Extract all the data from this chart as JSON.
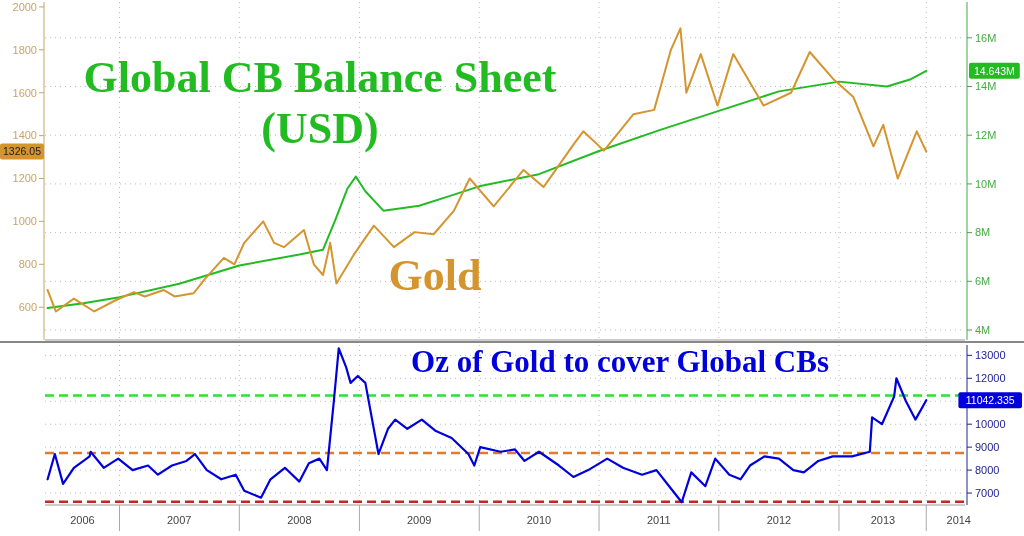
{
  "chart_data": [
    {
      "type": "line",
      "xlim": [
        "2006-05-19",
        "2014-01-20"
      ],
      "xticks": [
        {
          "value": "2007-01-01",
          "label": null
        },
        {
          "value": "2008-01-01",
          "label": null
        },
        {
          "value": "2009-01-01",
          "label": null
        },
        {
          "value": "2010-01-01",
          "label": null
        },
        {
          "value": "2011-01-01",
          "label": null
        },
        {
          "value": "2012-01-01",
          "label": null
        },
        {
          "value": "2013-01-01",
          "label": null
        },
        {
          "value": "2013-09-24",
          "label": null
        }
      ],
      "ylim": [
        447,
        2023
      ],
      "yticks": [
        600,
        800,
        1000,
        1200,
        1400,
        1600,
        1800,
        2000
      ],
      "y2lim": [
        3.59,
        17.47
      ],
      "y2ticks": [
        {
          "value": 4,
          "label": "4M"
        },
        {
          "value": 6,
          "label": "6M"
        },
        {
          "value": 8,
          "label": "8M"
        },
        {
          "value": 10,
          "label": "10M"
        },
        {
          "value": 12,
          "label": "12M"
        },
        {
          "value": 14,
          "label": "14M"
        },
        {
          "value": 16,
          "label": "16M"
        }
      ],
      "grid": true,
      "tick_labels": "y",
      "annotations": [
        "14.643M",
        "1326.05"
      ],
      "series": [
        {
          "name": "Global CB Balance Sheet (USD)",
          "color": "#22bb22",
          "axis": "y2",
          "x": [
            "2006-05-27",
            "2006-09-13",
            "2007-01-01",
            "2007-07-02",
            "2008-01-01",
            "2008-07-02",
            "2008-09-12",
            "2008-10-19",
            "2008-11-25",
            "2008-12-21",
            "2009-01-19",
            "2009-03-15",
            "2009-07-02",
            "2009-10-02",
            "2010-01-01",
            "2010-07-02",
            "2011-01-01",
            "2011-07-02",
            "2012-01-01",
            "2012-07-02",
            "2013-01-01",
            "2013-05-27",
            "2013-08-08",
            "2013-09-24"
          ],
          "values": [
            4.9,
            5.1,
            5.35,
            5.9,
            6.65,
            7.1,
            7.3,
            8.5,
            9.8,
            10.3,
            9.7,
            8.9,
            9.1,
            9.5,
            9.9,
            10.4,
            11.35,
            12.2,
            13.0,
            13.8,
            14.2,
            14.0,
            14.3,
            14.643
          ]
        },
        {
          "name": "Gold",
          "color": "#d4952f",
          "x": [
            "2006-05-27",
            "2006-06-21",
            "2006-08-15",
            "2006-10-16",
            "2006-12-17",
            "2007-02-14",
            "2007-03-19",
            "2007-05-16",
            "2007-06-18",
            "2007-08-15",
            "2007-09-17",
            "2007-11-15",
            "2007-12-17",
            "2008-01-16",
            "2008-03-14",
            "2008-04-16",
            "2008-05-16",
            "2008-07-16",
            "2008-08-15",
            "2008-09-12",
            "2008-10-04",
            "2008-10-23",
            "2008-12-17",
            "2009-02-14",
            "2009-04-16",
            "2009-06-18",
            "2009-08-15",
            "2009-10-16",
            "2009-12-03",
            "2010-02-14",
            "2010-05-16",
            "2010-07-16",
            "2010-10-16",
            "2010-11-14",
            "2011-01-16",
            "2011-04-16",
            "2011-06-18",
            "2011-08-08",
            "2011-09-06",
            "2011-09-24",
            "2011-11-07",
            "2011-12-28",
            "2012-02-14",
            "2012-05-16",
            "2012-08-08",
            "2012-10-04",
            "2012-12-17",
            "2013-02-14",
            "2013-04-16",
            "2013-05-16",
            "2013-06-29",
            "2013-08-26",
            "2013-09-24"
          ],
          "values": [
            680,
            580,
            640,
            580,
            630,
            670,
            650,
            680,
            650,
            665,
            730,
            830,
            800,
            900,
            1000,
            900,
            880,
            960,
            800,
            750,
            900,
            710,
            850,
            980,
            880,
            950,
            940,
            1050,
            1200,
            1070,
            1240,
            1160,
            1360,
            1420,
            1330,
            1500,
            1520,
            1800,
            1900,
            1600,
            1780,
            1540,
            1780,
            1540,
            1600,
            1790,
            1660,
            1580,
            1350,
            1450,
            1200,
            1420,
            1326.05
          ]
        }
      ]
    },
    {
      "type": "line",
      "title": "Oz of Gold to cover Global CBs",
      "xlim": [
        "2006-05-19",
        "2014-01-20"
      ],
      "xticks": [
        {
          "value": "2006-09-10",
          "label": "2006"
        },
        {
          "value": "2007-01-01",
          "label": null
        },
        {
          "value": "2007-07-02",
          "label": "2007"
        },
        {
          "value": "2008-01-01",
          "label": null
        },
        {
          "value": "2008-07-02",
          "label": "2008"
        },
        {
          "value": "2009-01-01",
          "label": null
        },
        {
          "value": "2009-07-02",
          "label": "2009"
        },
        {
          "value": "2010-01-01",
          "label": null
        },
        {
          "value": "2010-07-02",
          "label": "2010"
        },
        {
          "value": "2011-01-01",
          "label": null
        },
        {
          "value": "2011-07-02",
          "label": "2011"
        },
        {
          "value": "2012-01-01",
          "label": null
        },
        {
          "value": "2012-07-02",
          "label": "2012"
        },
        {
          "value": "2013-01-01",
          "label": null
        },
        {
          "value": "2013-05-15",
          "label": "2013"
        },
        {
          "value": "2013-09-24",
          "label": null
        },
        {
          "value": "2014-01-01",
          "label": "2014"
        }
      ],
      "y2lim": [
        6480,
        13450
      ],
      "y2ticks": [
        7000,
        8000,
        9000,
        10000,
        {
          "value": 11000,
          "label": null
        },
        12000,
        13000
      ],
      "grid": true,
      "annotations": [
        "11042.335"
      ],
      "ref_lines": [
        {
          "axis": "y2",
          "value": 11250,
          "color": "#33dd33",
          "line_style": "dashed"
        },
        {
          "axis": "y2",
          "value": 8750,
          "color": "#e07b2a",
          "line_style": "dashed"
        },
        {
          "axis": "y2",
          "value": 6620,
          "color": "#cc2222",
          "line_style": "dashed"
        }
      ],
      "series": [
        {
          "color": "#0000dd",
          "axis": "y2",
          "x": [
            "2006-05-27",
            "2006-06-18",
            "2006-07-13",
            "2006-08-15",
            "2006-10-02",
            "2006-10-05",
            "2006-11-14",
            "2006-12-28",
            "2007-02-10",
            "2007-03-29",
            "2007-04-28",
            "2007-06-10",
            "2007-07-24",
            "2007-08-19",
            "2007-09-24",
            "2007-11-07",
            "2007-12-21",
            "2008-01-16",
            "2008-03-07",
            "2008-04-05",
            "2008-05-19",
            "2008-07-02",
            "2008-07-31",
            "2008-09-01",
            "2008-09-24",
            "2008-10-15",
            "2008-10-30",
            "2008-11-21",
            "2008-12-05",
            "2008-12-27",
            "2009-01-19",
            "2009-02-28",
            "2009-03-29",
            "2009-04-20",
            "2009-05-27",
            "2009-07-10",
            "2009-08-22",
            "2009-10-09",
            "2009-11-29",
            "2009-12-17",
            "2010-01-04",
            "2010-03-07",
            "2010-04-20",
            "2010-05-19",
            "2010-07-02",
            "2010-09-01",
            "2010-10-15",
            "2010-11-29",
            "2011-01-26",
            "2011-03-15",
            "2011-05-12",
            "2011-06-25",
            "2011-08-08",
            "2011-09-10",
            "2011-10-09",
            "2011-11-21",
            "2011-12-21",
            "2012-02-02",
            "2012-03-07",
            "2012-04-05",
            "2012-05-19",
            "2012-07-02",
            "2012-08-15",
            "2012-09-16",
            "2012-10-30",
            "2012-12-13",
            "2013-02-10",
            "2013-04-05",
            "2013-04-12",
            "2013-05-12",
            "2013-06-18",
            "2013-06-25",
            "2013-07-24",
            "2013-08-22",
            "2013-09-24"
          ],
          "values": [
            7600,
            8700,
            7400,
            8100,
            8600,
            8800,
            8100,
            8500,
            8000,
            8200,
            7800,
            8200,
            8400,
            8700,
            8000,
            7600,
            7800,
            7100,
            6800,
            7600,
            8100,
            7500,
            8300,
            8500,
            8000,
            11000,
            13300,
            12500,
            11800,
            12100,
            11800,
            8700,
            9800,
            10200,
            9800,
            10200,
            9700,
            9400,
            8700,
            8200,
            9000,
            8800,
            8900,
            8400,
            8800,
            8200,
            7700,
            8000,
            8500,
            8100,
            7800,
            8000,
            7200,
            6600,
            7900,
            7300,
            8500,
            7800,
            7600,
            8200,
            8600,
            8500,
            8000,
            7900,
            8400,
            8600,
            8600,
            8800,
            10300,
            10000,
            11200,
            12000,
            11000,
            10200,
            11042.335
          ]
        }
      ]
    }
  ]
}
